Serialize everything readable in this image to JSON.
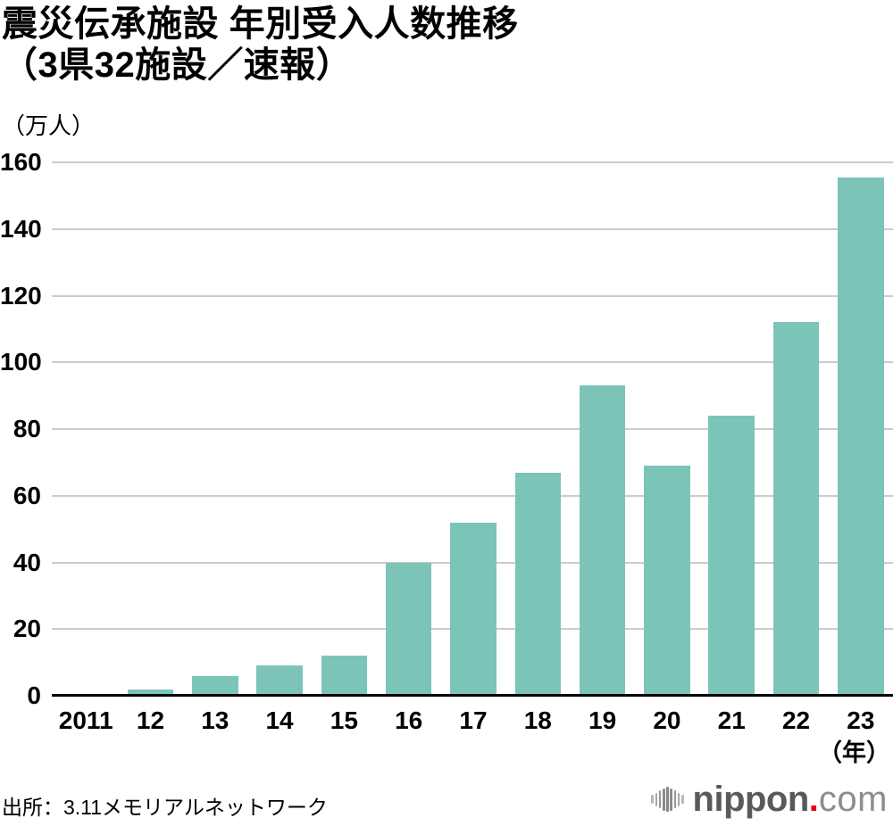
{
  "title": {
    "line1": "震災伝承施設 年別受入人数推移",
    "line2": "（3県32施設／速報）"
  },
  "chart_data": {
    "type": "bar",
    "title": "震災伝承施設 年別受入人数推移（3県32施設／速報）",
    "unit_label": "（万人）",
    "x_axis_suffix": "（年）",
    "categories": [
      "2011",
      "12",
      "13",
      "14",
      "15",
      "16",
      "17",
      "18",
      "19",
      "20",
      "21",
      "22",
      "23"
    ],
    "values": [
      0.5,
      2,
      6,
      9,
      12,
      40,
      52,
      67,
      93,
      69,
      84,
      112,
      155.5
    ],
    "xlabel": "年",
    "ylabel": "万人",
    "ylim": [
      0,
      160
    ],
    "yticks": [
      0,
      20,
      40,
      60,
      80,
      100,
      120,
      140,
      160
    ],
    "grid": true,
    "legend": false,
    "bar_color": "#7cc4b8",
    "grid_color": "#cccccc",
    "axis_color": "#000000"
  },
  "footer": {
    "source": "出所：3.11メモリアルネットワーク",
    "logo": {
      "icon": "waveform-icon",
      "name": "nippon",
      "dot": ".",
      "tld": "com",
      "dot_color": "#e60012",
      "wave_heights": [
        10,
        15,
        20,
        25,
        28,
        25,
        20,
        15,
        10
      ],
      "wave_colors": [
        "#b9b9b9",
        "#a6a6a6",
        "#969696",
        "#8c8c8c",
        "#868686",
        "#8c8c8c",
        "#969696",
        "#a6a6a6",
        "#b9b9b9"
      ]
    }
  }
}
